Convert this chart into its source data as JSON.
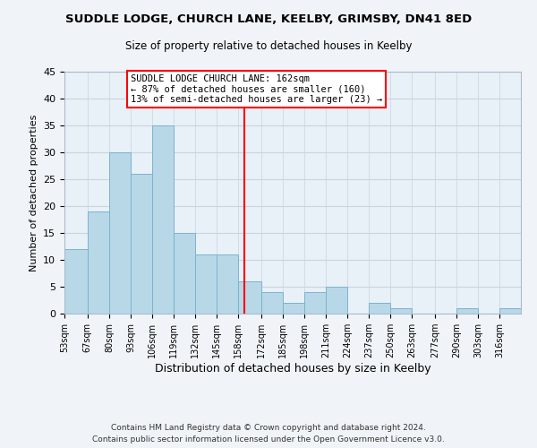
{
  "title": "SUDDLE LODGE, CHURCH LANE, KEELBY, GRIMSBY, DN41 8ED",
  "subtitle": "Size of property relative to detached houses in Keelby",
  "xlabel": "Distribution of detached houses by size in Keelby",
  "ylabel": "Number of detached properties",
  "bin_labels": [
    "53sqm",
    "67sqm",
    "80sqm",
    "93sqm",
    "106sqm",
    "119sqm",
    "132sqm",
    "145sqm",
    "158sqm",
    "172sqm",
    "185sqm",
    "198sqm",
    "211sqm",
    "224sqm",
    "237sqm",
    "250sqm",
    "263sqm",
    "277sqm",
    "290sqm",
    "303sqm",
    "316sqm"
  ],
  "bin_edges": [
    53,
    67,
    80,
    93,
    106,
    119,
    132,
    145,
    158,
    172,
    185,
    198,
    211,
    224,
    237,
    250,
    263,
    277,
    290,
    303,
    316,
    329
  ],
  "counts": [
    12,
    19,
    30,
    26,
    35,
    15,
    11,
    11,
    6,
    4,
    2,
    4,
    5,
    0,
    2,
    1,
    0,
    0,
    1,
    0,
    1
  ],
  "bar_color": "#b8d8e8",
  "bar_edgecolor": "#7ab4cc",
  "vline_x": 162,
  "vline_color": "red",
  "annotation_text": "SUDDLE LODGE CHURCH LANE: 162sqm\n← 87% of detached houses are smaller (160)\n13% of semi-detached houses are larger (23) →",
  "annotation_box_color": "white",
  "annotation_box_edgecolor": "red",
  "ylim": [
    0,
    45
  ],
  "yticks": [
    0,
    5,
    10,
    15,
    20,
    25,
    30,
    35,
    40,
    45
  ],
  "footer": "Contains HM Land Registry data © Crown copyright and database right 2024.\nContains public sector information licensed under the Open Government Licence v3.0.",
  "background_color": "#f0f4f8",
  "plot_background_color": "#e8f0f8",
  "grid_color": "#c8d4e0"
}
